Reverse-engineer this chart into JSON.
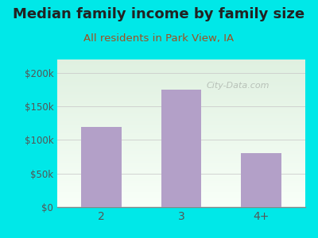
{
  "title": "Median family income by family size",
  "subtitle": "All residents in Park View, IA",
  "categories": [
    "2",
    "3",
    "4+"
  ],
  "values": [
    120000,
    175000,
    80000
  ],
  "bar_color": "#b3a0c8",
  "background_color": "#00e8e8",
  "plot_bg_color_top": "#dff0e0",
  "plot_bg_color_bottom": "#f8fff8",
  "title_color": "#222222",
  "subtitle_color": "#a05020",
  "tick_color": "#555555",
  "ylim": [
    0,
    220000
  ],
  "yticks": [
    0,
    50000,
    100000,
    150000,
    200000
  ],
  "ytick_labels": [
    "$0",
    "$50k",
    "$100k",
    "$150k",
    "$200k"
  ],
  "title_fontsize": 13,
  "subtitle_fontsize": 9.5,
  "watermark_text": "City-Data.com",
  "watermark_color": "#b0b8b0"
}
